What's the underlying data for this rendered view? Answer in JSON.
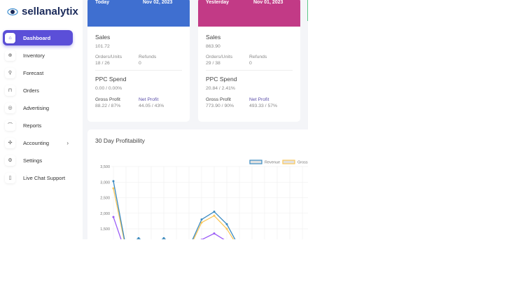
{
  "brand": {
    "name": "sellanalytix"
  },
  "sidebar": {
    "items": [
      {
        "label": "Dashboard",
        "icon": "home-icon",
        "glyph": "⌂",
        "active": true
      },
      {
        "label": "Inventory",
        "icon": "box-icon",
        "glyph": "⊕"
      },
      {
        "label": "Forecast",
        "icon": "forecast-icon",
        "glyph": "⚲"
      },
      {
        "label": "Orders",
        "icon": "cart-icon",
        "glyph": "⊓"
      },
      {
        "label": "Advertising",
        "icon": "target-icon",
        "glyph": "◎"
      },
      {
        "label": "Reports",
        "icon": "chart-icon",
        "glyph": "⌒"
      },
      {
        "label": "Accounting",
        "icon": "accounting-icon",
        "glyph": "✣",
        "chevron": "›"
      },
      {
        "label": "Settings",
        "icon": "gear-icon",
        "glyph": "⚙"
      },
      {
        "label": "Live Chat Support",
        "icon": "phone-icon",
        "glyph": "▯"
      }
    ]
  },
  "cards": [
    {
      "period": "Today",
      "date": "Nov 02, 2023",
      "color": "#3f6fd0",
      "sales_label": "Sales",
      "sales": "101.72",
      "orders_label": "Orders/Units",
      "orders": "18 / 26",
      "refunds_label": "Refunds",
      "refunds": "0",
      "ppc_label": "PPC Spend",
      "ppc": "0.00 / 0.00%",
      "gross_label": "Gross Profit",
      "gross": "88.22 / 87%",
      "net_label": "Net Profit",
      "net": "44.05 / 43%"
    },
    {
      "period": "Yesterday",
      "date": "Nov 01, 2023",
      "color": "#c23a86",
      "sales_label": "Sales",
      "sales": "863.90",
      "orders_label": "Orders/Units",
      "orders": "29 / 38",
      "refunds_label": "Refunds",
      "refunds": "0",
      "ppc_label": "PPC Spend",
      "ppc": "20.84 / 2.41%",
      "gross_label": "Gross Profit",
      "gross": "773.90 / 90%",
      "net_label": "Net Profit",
      "net": "493.33 / 57%"
    }
  ],
  "chart_data": {
    "type": "line",
    "title": "30 Day Profitability",
    "grid": true,
    "legend_position": "top-right",
    "y_ticks": [
      "3,500",
      "3,000",
      "2,500",
      "2,000",
      "1,500"
    ],
    "ylim": [
      1000,
      3500
    ],
    "series": [
      {
        "name": "Revenue",
        "color": "#3b8bc2",
        "values": [
          3030,
          900,
          1200,
          900,
          1200,
          900,
          900,
          1800,
          2050,
          1650,
          900
        ]
      },
      {
        "name": "Gross",
        "color": "#fbc75a",
        "values": [
          2800,
          850,
          1150,
          850,
          1150,
          850,
          850,
          1700,
          1920,
          1500,
          850
        ]
      },
      {
        "color": "#9b5cf6",
        "values": [
          1880,
          700,
          800,
          700,
          800,
          700,
          700,
          1150,
          1350,
          1100,
          700
        ]
      }
    ]
  }
}
